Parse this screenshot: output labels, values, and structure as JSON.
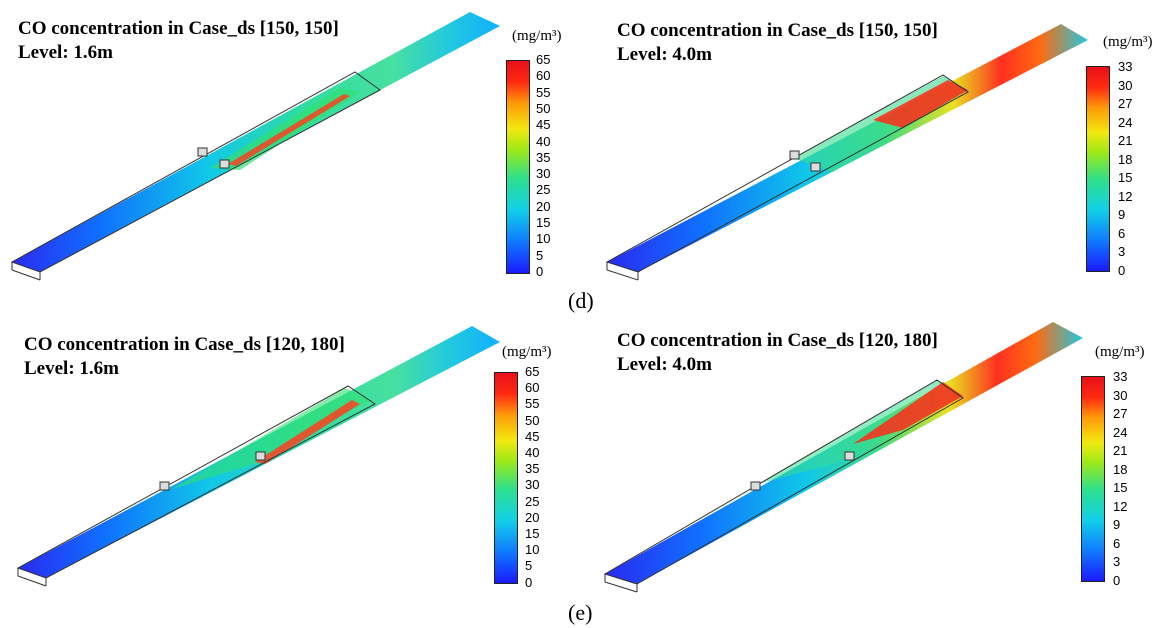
{
  "panels": [
    {
      "title": "CO concentration in Case_ds [150, 150]",
      "level": "Level: 1.6m",
      "unit": "(mg/m³)",
      "ticks": [
        "65",
        "60",
        "55",
        "50",
        "45",
        "40",
        "35",
        "30",
        "25",
        "20",
        "15",
        "10",
        "5",
        "0"
      ]
    },
    {
      "title": "CO concentration in Case_ds [150, 150]",
      "level": "Level: 4.0m",
      "unit": "(mg/m³)",
      "ticks": [
        "33",
        "30",
        "27",
        "24",
        "21",
        "18",
        "15",
        "12",
        "9",
        "6",
        "3",
        "0"
      ]
    },
    {
      "title": "CO concentration in Case_ds [120, 180]",
      "level": "Level: 1.6m",
      "unit": "(mg/m³)",
      "ticks": [
        "65",
        "60",
        "55",
        "50",
        "45",
        "40",
        "35",
        "30",
        "25",
        "20",
        "15",
        "10",
        "5",
        "0"
      ]
    },
    {
      "title": "CO concentration in Case_ds [120, 180]",
      "level": "Level: 4.0m",
      "unit": "(mg/m³)",
      "ticks": [
        "33",
        "30",
        "27",
        "24",
        "21",
        "18",
        "15",
        "12",
        "9",
        "6",
        "3",
        "0"
      ]
    }
  ],
  "subfigure_labels": {
    "d": "(d)",
    "e": "(e)"
  }
}
